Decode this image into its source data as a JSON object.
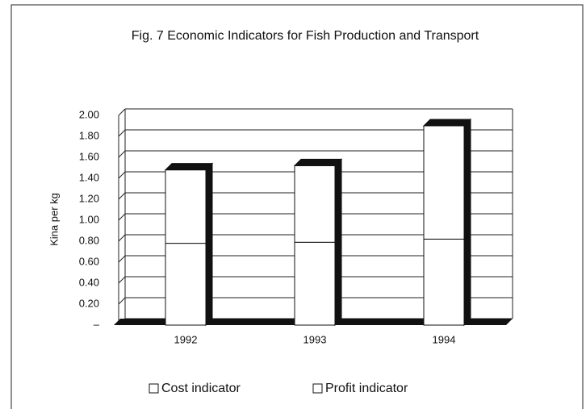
{
  "chart_data": {
    "type": "bar",
    "stacked": true,
    "three_d": true,
    "title": "Fig. 7 Economic Indicators for Fish Production and Transport",
    "y_label": "Kina per kg",
    "categories": [
      "1992",
      "1993",
      "1994"
    ],
    "series": [
      {
        "name": "Cost indicator",
        "color": "#ffffff",
        "values": [
          0.78,
          0.79,
          0.82
        ]
      },
      {
        "name": "Profit indicator",
        "color": "#ffffff",
        "values": [
          0.7,
          0.73,
          1.08
        ]
      }
    ],
    "ylim": [
      0,
      2
    ],
    "yticks": [
      {
        "value": 0,
        "label": "–"
      },
      {
        "value": 0.2,
        "label": "0.20"
      },
      {
        "value": 0.4,
        "label": "0.40"
      },
      {
        "value": 0.6,
        "label": "0.60"
      },
      {
        "value": 0.8,
        "label": "0.80"
      },
      {
        "value": 1.0,
        "label": "1.00"
      },
      {
        "value": 1.2,
        "label": "1.20"
      },
      {
        "value": 1.4,
        "label": "1.40"
      },
      {
        "value": 1.6,
        "label": "1.60"
      },
      {
        "value": 1.8,
        "label": "1.80"
      },
      {
        "value": 2.0,
        "label": "2.00"
      }
    ],
    "grid": true,
    "legend": "bottom"
  }
}
